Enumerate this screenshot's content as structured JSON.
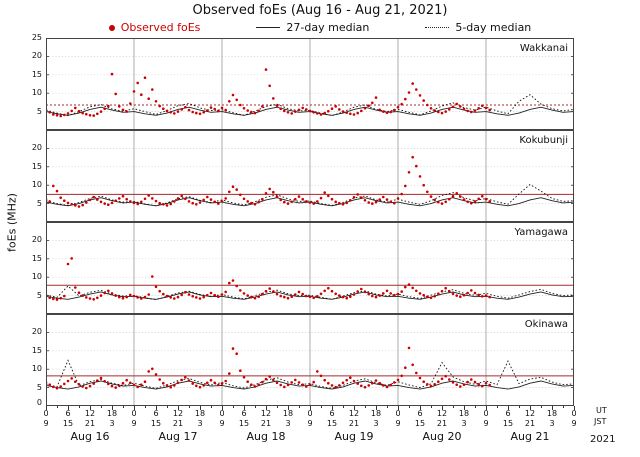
{
  "title": "Observed foEs (Aug 16 - Aug 21, 2021)",
  "legend": {
    "observed": "Observed foEs",
    "median27": "27-day median",
    "median5": "5-day median"
  },
  "axis": {
    "ylabel": "foEs (MHz)",
    "ut_label": "UT",
    "jst_label": "JST",
    "year": "2021",
    "days": [
      "Aug 16",
      "Aug 17",
      "Aug 18",
      "Aug 19",
      "Aug 20",
      "Aug 21"
    ],
    "ut_ticks": [
      0,
      6,
      12,
      18
    ],
    "jst_ticks": [
      9,
      15,
      21,
      3
    ],
    "ut_end": 0,
    "jst_end": 9
  },
  "colors": {
    "observed": "#cc0000",
    "median27": "#222222",
    "median5": "#111111",
    "threshold": "#a52a2a",
    "grid": "#c8c8c8",
    "dayline": "#999999",
    "border": "#444444"
  },
  "chart_data": {
    "type": "scatter",
    "title": "Observed foEs (Aug 16 - Aug 21, 2021)",
    "xlabel": "UT / JST, Aug 16 - Aug 21 2021",
    "ylabel": "foEs (MHz)",
    "x_hours_range": [
      0,
      144
    ],
    "observed_step_hours": 1,
    "median_step_hours": 3,
    "ylim": [
      0,
      25
    ],
    "yticks_first": [
      25,
      20,
      15,
      10,
      5
    ],
    "yticks_rest": [
      20,
      15,
      10,
      5
    ],
    "stations": [
      {
        "name": "Wakkanai",
        "threshold": 6.8,
        "threshold_style": "dotted",
        "observed": [
          5.5,
          4.8,
          4.2,
          4.0,
          3.8,
          4.1,
          4.5,
          5.2,
          6.0,
          5.1,
          4.6,
          4.3,
          4.0,
          3.9,
          4.4,
          5.0,
          5.8,
          6.5,
          15.2,
          9.8,
          6.4,
          5.5,
          5.0,
          7.2,
          10.5,
          12.8,
          9.6,
          14.2,
          8.5,
          11.0,
          7.8,
          6.5,
          5.8,
          5.2,
          4.8,
          4.5,
          5.0,
          5.6,
          6.2,
          5.4,
          4.9,
          4.6,
          4.4,
          4.8,
          5.3,
          6.1,
          5.7,
          5.2,
          6.0,
          5.4,
          7.8,
          9.5,
          8.2,
          6.8,
          5.9,
          5.3,
          4.9,
          4.6,
          5.2,
          6.4,
          16.4,
          12.0,
          8.6,
          6.6,
          5.8,
          5.2,
          4.8,
          4.5,
          5.0,
          5.5,
          6.0,
          5.6,
          5.2,
          4.8,
          4.5,
          4.2,
          4.6,
          5.1,
          5.8,
          6.4,
          5.6,
          5.0,
          4.7,
          4.4,
          4.2,
          4.6,
          5.2,
          5.9,
          6.6,
          7.4,
          8.8,
          5.5,
          5.0,
          4.7,
          4.9,
          5.4,
          6.2,
          7.0,
          8.4,
          10.2,
          12.6,
          11.0,
          9.4,
          8.0,
          6.8,
          5.9,
          5.3,
          4.9,
          4.6,
          5.0,
          5.6,
          6.3,
          7.1,
          6.4,
          5.7,
          5.2,
          4.9,
          5.3,
          5.9,
          6.6,
          6.0,
          5.4
        ],
        "median27": [
          5.0,
          4.4,
          4.0,
          4.6,
          5.6,
          6.2,
          5.4,
          4.8,
          5.0,
          4.4,
          4.0,
          4.6,
          5.6,
          6.2,
          5.4,
          4.8,
          5.0,
          4.4,
          4.0,
          4.6,
          5.6,
          6.2,
          5.4,
          4.8,
          5.0,
          4.4,
          4.0,
          4.6,
          5.6,
          6.2,
          5.4,
          4.8,
          5.0,
          4.4,
          4.0,
          4.6,
          5.6,
          6.2,
          5.4,
          4.8,
          5.0,
          4.4,
          4.0,
          4.6,
          5.6,
          6.2,
          5.4,
          4.8,
          5.0
        ],
        "median5": [
          5.4,
          4.6,
          3.9,
          5.0,
          6.3,
          6.9,
          5.7,
          5.1,
          5.8,
          5.0,
          4.2,
          5.3,
          6.6,
          7.2,
          6.0,
          5.3,
          5.5,
          4.7,
          4.0,
          5.1,
          6.4,
          7.0,
          5.8,
          5.2,
          5.3,
          4.6,
          3.9,
          4.9,
          6.2,
          6.8,
          5.6,
          5.0,
          5.6,
          4.8,
          4.1,
          5.2,
          6.5,
          7.4,
          6.1,
          5.4,
          6.2,
          5.2,
          4.4,
          7.8,
          9.6,
          7.0,
          5.8,
          5.2,
          5.6
        ]
      },
      {
        "name": "Kokubunji",
        "threshold": 7.5,
        "threshold_style": "solid",
        "observed": [
          6.2,
          5.6,
          9.8,
          8.4,
          6.6,
          5.8,
          5.2,
          4.8,
          4.5,
          4.2,
          4.6,
          5.3,
          6.0,
          6.8,
          6.1,
          5.5,
          5.0,
          4.7,
          5.2,
          5.8,
          6.4,
          7.0,
          6.2,
          5.6,
          5.2,
          4.9,
          5.5,
          6.3,
          7.2,
          6.4,
          5.7,
          5.1,
          4.8,
          4.5,
          4.9,
          5.6,
          6.4,
          7.1,
          6.3,
          5.6,
          5.1,
          4.8,
          5.3,
          6.0,
          6.8,
          6.1,
          5.5,
          5.0,
          5.6,
          6.4,
          8.2,
          9.6,
          8.8,
          7.4,
          6.3,
          5.6,
          5.1,
          4.8,
          5.4,
          6.2,
          7.8,
          9.0,
          8.1,
          6.9,
          6.0,
          5.4,
          5.0,
          5.5,
          6.2,
          6.9,
          6.2,
          5.6,
          5.3,
          5.0,
          5.6,
          6.5,
          8.0,
          7.1,
          6.2,
          5.5,
          5.1,
          4.8,
          5.2,
          5.9,
          6.7,
          7.5,
          6.6,
          5.9,
          5.3,
          5.0,
          5.4,
          6.1,
          6.8,
          6.1,
          5.5,
          5.1,
          6.4,
          7.6,
          9.8,
          13.5,
          17.6,
          15.2,
          12.4,
          10.0,
          8.2,
          6.9,
          6.0,
          5.4,
          5.0,
          5.5,
          6.2,
          7.0,
          7.8,
          6.9,
          6.1,
          5.5,
          5.1,
          5.6,
          6.3,
          7.0,
          6.2,
          5.6
        ],
        "median27": [
          5.4,
          4.8,
          4.4,
          5.0,
          6.0,
          6.6,
          5.8,
          5.2,
          5.4,
          4.8,
          4.4,
          5.0,
          6.0,
          6.6,
          5.8,
          5.2,
          5.4,
          4.8,
          4.4,
          5.0,
          6.0,
          6.6,
          5.8,
          5.2,
          5.4,
          4.8,
          4.4,
          5.0,
          6.0,
          6.6,
          5.8,
          5.2,
          5.4,
          4.8,
          4.4,
          5.0,
          6.0,
          6.6,
          5.8,
          5.2,
          5.4,
          4.8,
          4.4,
          5.0,
          6.0,
          6.6,
          5.8,
          5.2,
          5.4
        ],
        "median5": [
          5.8,
          5.0,
          4.5,
          5.3,
          6.4,
          7.0,
          6.0,
          5.4,
          5.6,
          4.9,
          4.4,
          5.2,
          6.3,
          6.9,
          5.9,
          5.3,
          6.0,
          5.2,
          4.6,
          5.5,
          6.7,
          7.4,
          6.3,
          5.6,
          5.7,
          5.0,
          4.5,
          5.3,
          6.5,
          7.1,
          6.0,
          5.4,
          6.2,
          5.4,
          4.8,
          5.8,
          7.2,
          8.0,
          6.6,
          5.8,
          6.4,
          5.5,
          4.8,
          7.6,
          10.2,
          8.4,
          6.4,
          5.6,
          5.8
        ]
      },
      {
        "name": "Yamagawa",
        "threshold": 7.8,
        "threshold_style": "solid",
        "observed": [
          4.8,
          4.4,
          4.1,
          3.9,
          4.3,
          4.9,
          13.6,
          15.1,
          7.2,
          5.8,
          5.0,
          4.5,
          4.2,
          4.0,
          4.4,
          5.0,
          5.7,
          6.3,
          5.6,
          5.0,
          4.6,
          4.3,
          4.6,
          5.2,
          4.9,
          4.5,
          4.2,
          4.6,
          5.3,
          10.2,
          7.4,
          6.2,
          5.4,
          4.9,
          4.5,
          4.2,
          4.6,
          5.2,
          5.9,
          5.3,
          4.8,
          4.5,
          4.2,
          4.6,
          5.1,
          5.7,
          5.1,
          4.7,
          5.3,
          6.0,
          8.4,
          9.1,
          7.6,
          6.4,
          5.6,
          5.0,
          4.6,
          4.3,
          4.7,
          5.4,
          6.2,
          6.9,
          6.1,
          5.4,
          4.9,
          4.6,
          4.3,
          4.7,
          5.3,
          6.0,
          5.4,
          4.9,
          4.7,
          4.4,
          4.8,
          5.5,
          6.3,
          7.0,
          6.2,
          5.5,
          5.0,
          4.6,
          4.3,
          4.7,
          5.3,
          6.1,
          6.8,
          6.0,
          5.4,
          4.9,
          4.6,
          5.0,
          5.6,
          6.3,
          5.6,
          5.1,
          5.4,
          6.1,
          7.3,
          8.0,
          7.1,
          6.3,
          5.6,
          5.1,
          4.7,
          4.4,
          4.8,
          5.5,
          6.2,
          7.0,
          6.2,
          5.5,
          5.0,
          4.7,
          5.1,
          5.7,
          6.4,
          5.7,
          5.2,
          4.8,
          5.0,
          4.6
        ],
        "median27": [
          4.8,
          4.3,
          4.0,
          4.6,
          5.4,
          6.0,
          5.2,
          4.7,
          4.8,
          4.3,
          4.0,
          4.6,
          5.4,
          6.0,
          5.2,
          4.7,
          4.8,
          4.3,
          4.0,
          4.6,
          5.4,
          6.0,
          5.2,
          4.7,
          4.8,
          4.3,
          4.0,
          4.6,
          5.4,
          6.0,
          5.2,
          4.7,
          4.8,
          4.3,
          4.0,
          4.6,
          5.4,
          6.0,
          5.2,
          4.7,
          4.8,
          4.3,
          4.0,
          4.6,
          5.4,
          6.0,
          5.2,
          4.7,
          4.8
        ],
        "median5": [
          5.2,
          4.5,
          7.6,
          4.9,
          5.9,
          6.4,
          5.4,
          4.9,
          5.0,
          4.4,
          3.9,
          4.8,
          5.7,
          6.2,
          5.3,
          4.8,
          5.3,
          4.6,
          4.1,
          5.0,
          5.9,
          6.5,
          5.5,
          5.0,
          5.1,
          4.5,
          4.0,
          4.9,
          5.8,
          6.3,
          5.4,
          4.9,
          5.4,
          4.7,
          4.2,
          5.1,
          6.0,
          6.6,
          5.6,
          5.1,
          5.6,
          4.8,
          4.3,
          5.2,
          6.1,
          6.7,
          5.6,
          5.0,
          5.2
        ]
      },
      {
        "name": "Okinawa",
        "threshold": 8.2,
        "threshold_style": "solid",
        "observed": [
          6.4,
          5.8,
          5.2,
          4.8,
          5.3,
          6.0,
          6.8,
          7.5,
          6.6,
          5.9,
          5.3,
          4.9,
          5.4,
          6.1,
          6.9,
          7.6,
          6.7,
          6.0,
          5.4,
          5.0,
          5.5,
          6.2,
          7.0,
          6.3,
          5.7,
          5.2,
          5.8,
          6.6,
          9.4,
          10.1,
          8.6,
          7.2,
          6.2,
          5.6,
          5.1,
          5.6,
          6.3,
          7.1,
          7.8,
          6.9,
          6.1,
          5.5,
          5.1,
          5.6,
          6.3,
          7.0,
          6.3,
          5.7,
          6.1,
          6.8,
          8.8,
          15.6,
          14.2,
          9.6,
          7.8,
          6.6,
          5.8,
          5.3,
          5.8,
          6.5,
          7.3,
          8.0,
          7.1,
          6.3,
          5.7,
          5.2,
          5.7,
          6.4,
          7.1,
          6.4,
          5.8,
          5.3,
          5.8,
          6.5,
          9.4,
          8.2,
          7.0,
          6.2,
          5.6,
          5.1,
          5.6,
          6.3,
          7.0,
          7.7,
          6.8,
          6.1,
          5.5,
          5.1,
          5.6,
          6.2,
          6.9,
          6.2,
          5.6,
          5.2,
          5.7,
          6.4,
          7.1,
          8.2,
          10.4,
          15.8,
          11.2,
          9.0,
          7.6,
          6.6,
          5.9,
          5.4,
          5.9,
          6.6,
          7.4,
          8.1,
          7.2,
          6.4,
          5.8,
          5.3,
          5.8,
          6.5,
          7.2,
          6.5,
          5.9,
          5.4,
          6.2,
          5.7
        ],
        "median27": [
          5.6,
          5.0,
          4.6,
          5.2,
          6.2,
          6.8,
          6.0,
          5.4,
          5.6,
          5.0,
          4.6,
          5.2,
          6.2,
          6.8,
          6.0,
          5.4,
          5.6,
          5.0,
          4.6,
          5.2,
          6.2,
          6.8,
          6.0,
          5.4,
          5.6,
          5.0,
          4.6,
          5.2,
          6.2,
          6.8,
          6.0,
          5.4,
          5.6,
          5.0,
          4.6,
          5.2,
          6.2,
          6.8,
          6.0,
          5.4,
          5.6,
          5.0,
          4.6,
          5.2,
          6.2,
          6.8,
          6.0,
          5.4,
          5.6
        ],
        "median5": [
          6.0,
          5.2,
          12.4,
          5.5,
          6.6,
          7.2,
          6.2,
          5.6,
          6.2,
          5.4,
          4.8,
          5.7,
          6.9,
          7.5,
          6.4,
          5.7,
          6.4,
          5.5,
          4.9,
          5.8,
          7.0,
          7.7,
          6.5,
          5.8,
          6.1,
          5.3,
          4.8,
          5.6,
          6.8,
          7.4,
          6.3,
          5.6,
          6.6,
          5.7,
          5.0,
          6.0,
          11.8,
          7.9,
          6.6,
          5.9,
          6.8,
          5.8,
          12.2,
          6.1,
          7.3,
          7.8,
          6.5,
          5.8,
          6.0
        ]
      }
    ]
  }
}
